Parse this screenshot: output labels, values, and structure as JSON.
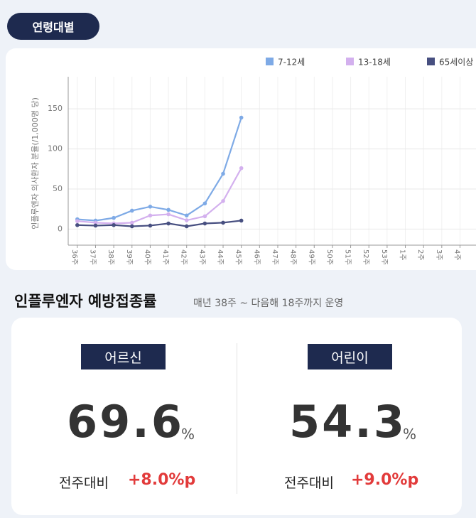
{
  "tab": "연령대별",
  "chart_data": {
    "type": "line",
    "y_label": "인플루엔자 의사환자 분율(/1,000명 당)",
    "categories": [
      "36주",
      "37주",
      "38주",
      "39주",
      "40주",
      "41주",
      "42주",
      "43주",
      "44주",
      "45주",
      "46주",
      "47주",
      "48주",
      "49주",
      "50주",
      "51주",
      "52주",
      "53주",
      "1주",
      "2주",
      "3주",
      "4주"
    ],
    "series": [
      {
        "name": "7-12세",
        "color": "#7eaae6",
        "values": [
          12.3,
          10.6,
          14,
          23,
          28,
          24,
          17,
          32,
          69,
          139,
          null,
          null,
          null,
          null,
          null,
          null,
          null,
          null,
          null,
          null,
          null,
          null
        ]
      },
      {
        "name": "13-18세",
        "color": "#d3b0ee",
        "values": [
          10,
          8,
          7,
          8,
          17,
          18.5,
          11,
          16,
          35,
          76,
          null,
          null,
          null,
          null,
          null,
          null,
          null,
          null,
          null,
          null,
          null,
          null
        ]
      },
      {
        "name": "65세이상",
        "color": "#474f80",
        "values": [
          5,
          4.4,
          5,
          3.5,
          4.4,
          7,
          3.5,
          7,
          8,
          10.6,
          null,
          null,
          null,
          null,
          null,
          null,
          null,
          null,
          null,
          null,
          null,
          null
        ]
      }
    ],
    "ylim": [
      -20,
      190
    ],
    "yticks": [
      0,
      50,
      100,
      150
    ],
    "grid": true,
    "legend": "top-right"
  },
  "vaccination": {
    "title": "인플루엔자 예방접종률",
    "subtitle": "매년 38주 ~ 다음해 18주까지 운영",
    "cards": [
      {
        "label": "어르신",
        "value": "69.6",
        "unit": "%",
        "compare_label": "전주대비",
        "change": "+8.0%p"
      },
      {
        "label": "어린이",
        "value": "54.3",
        "unit": "%",
        "compare_label": "전주대비",
        "change": "+9.0%p"
      }
    ]
  }
}
